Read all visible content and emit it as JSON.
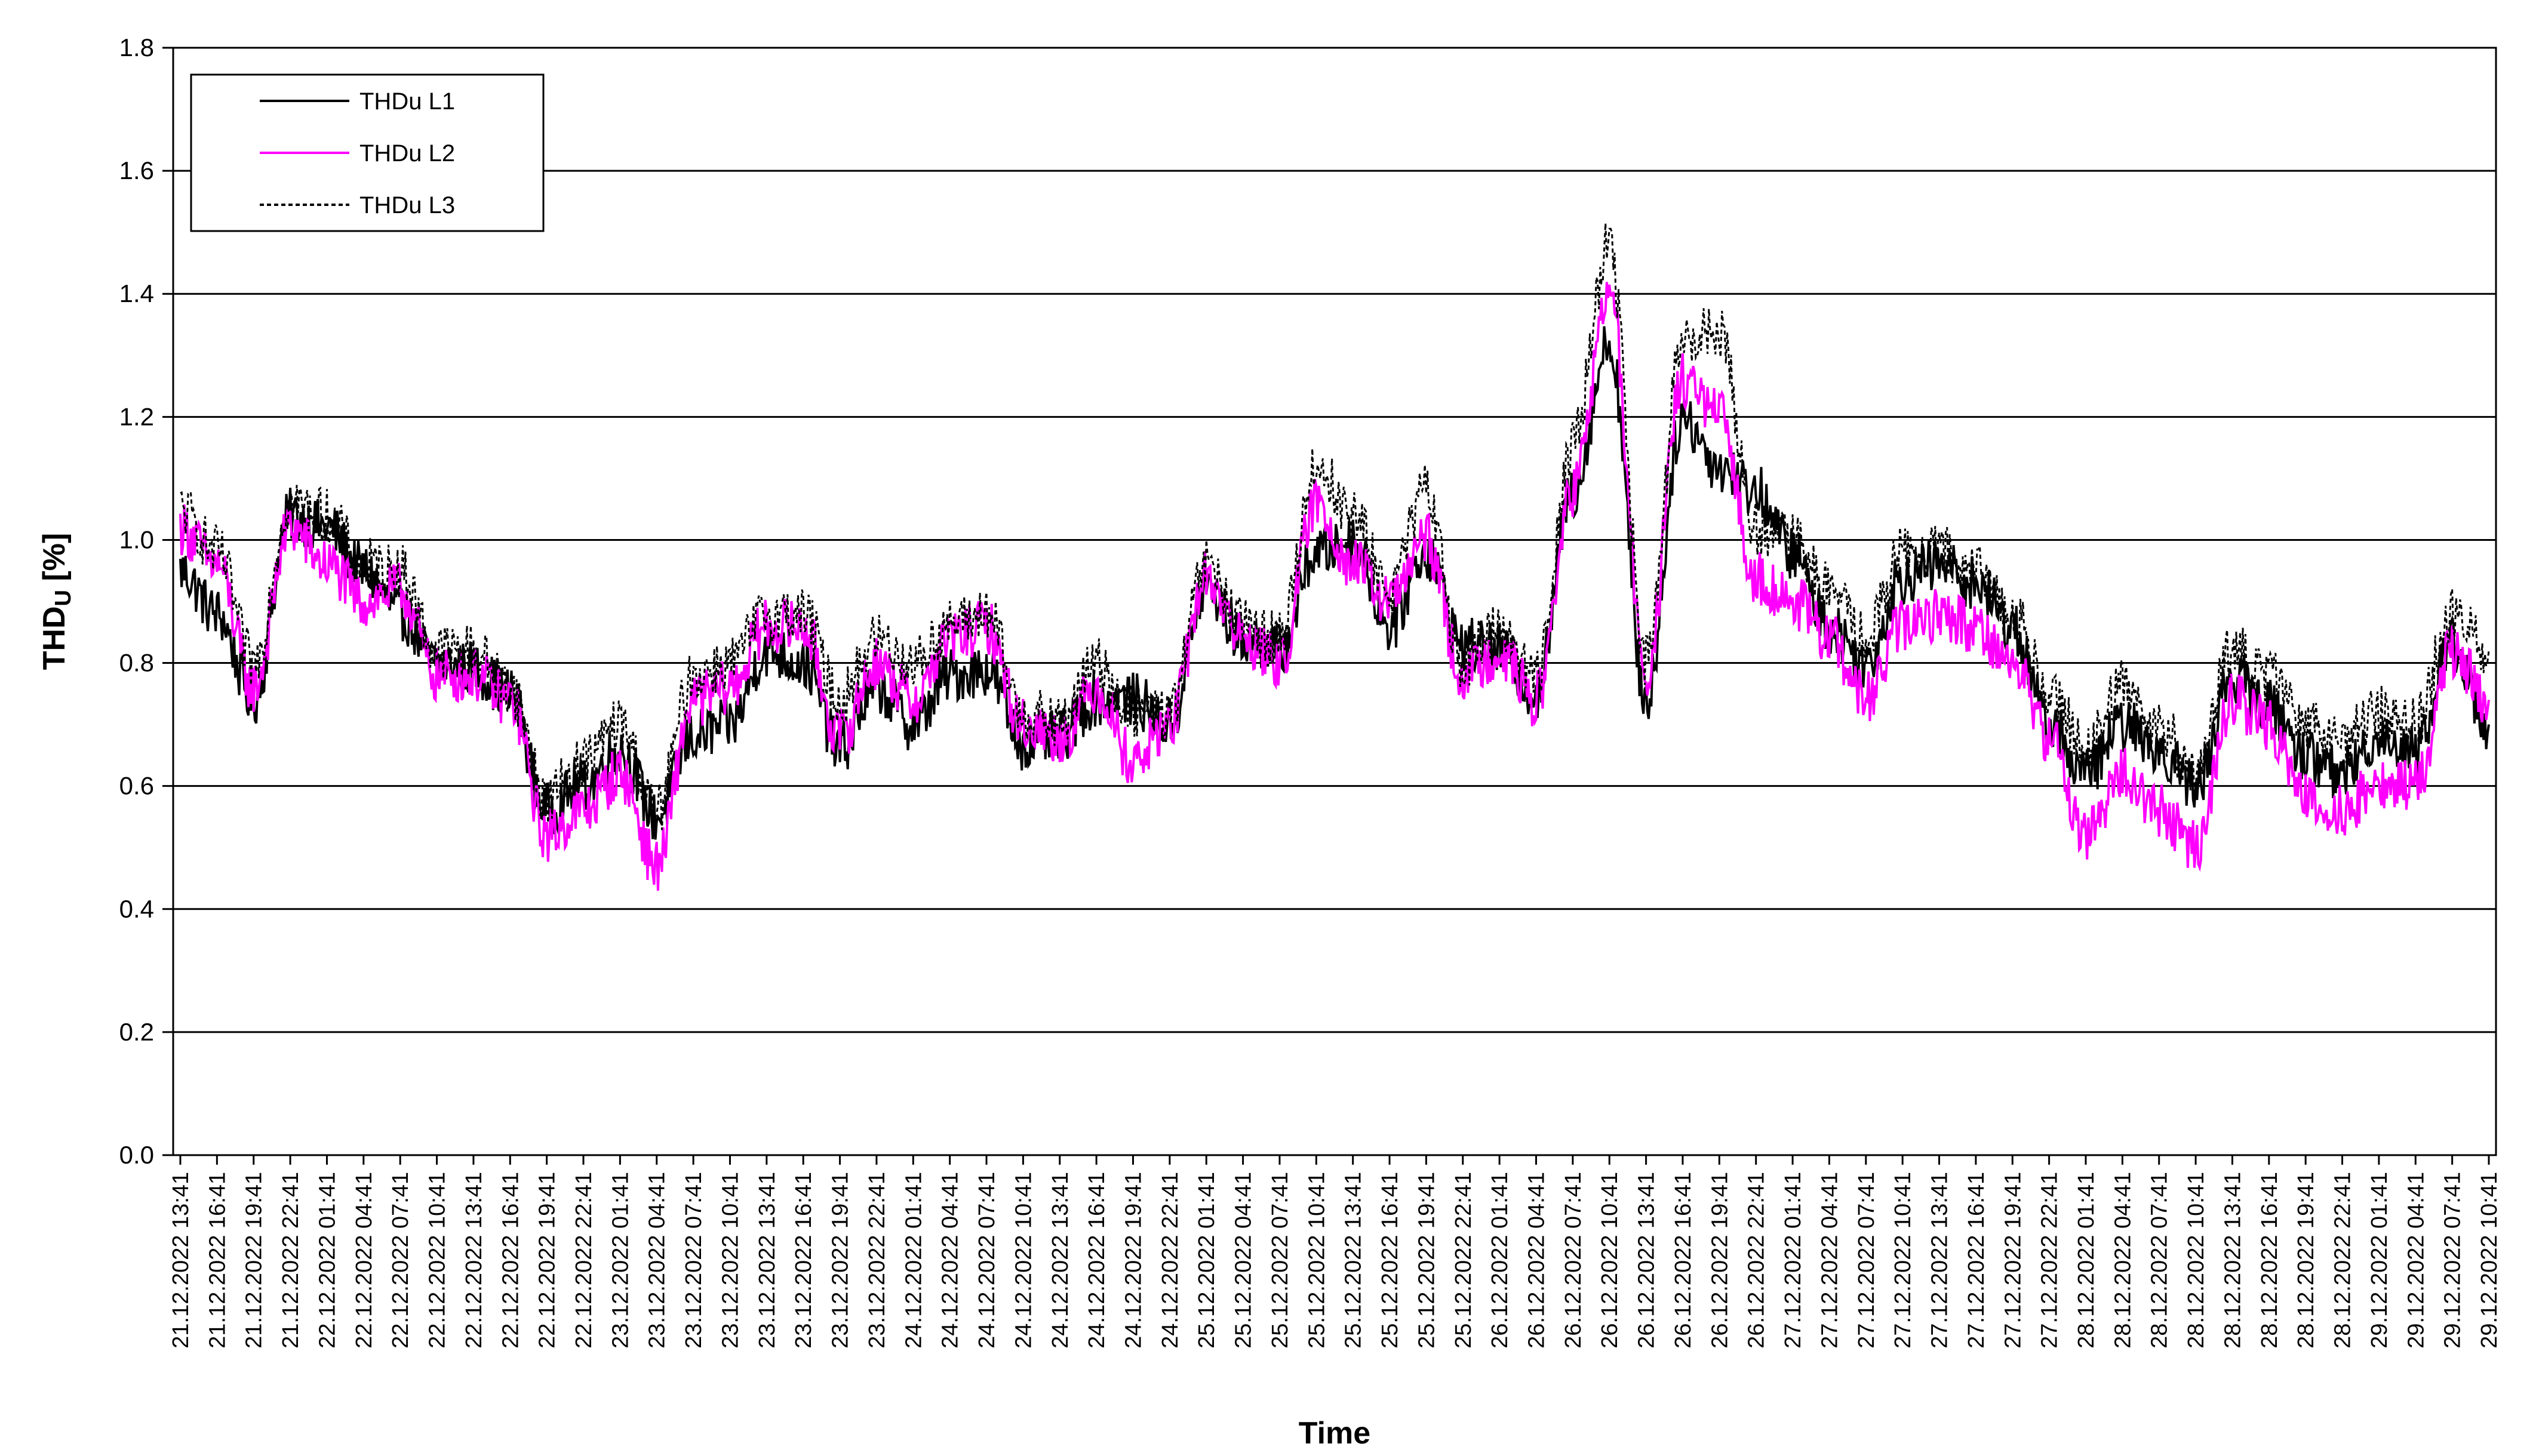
{
  "chart_data": {
    "type": "line",
    "title": "",
    "xlabel": "Time",
    "ylabel_main": "THD",
    "ylabel_sub": "U",
    "ylabel_unit": " [%]",
    "ylim": [
      0,
      1.8
    ],
    "yticks": [
      "0.0",
      "0.2",
      "0.4",
      "0.6",
      "0.8",
      "1.0",
      "1.2",
      "1.4",
      "1.6",
      "1.8"
    ],
    "grid": "horizontal",
    "legend_position": "top-left",
    "x_start": "21.12.2022 13:41",
    "x_end": "29.12.2022 12:41",
    "x_step_hours": 3,
    "x": [
      "21.12.2022 13:41",
      "21.12.2022 16:41",
      "21.12.2022 19:41",
      "21.12.2022 22:41",
      "22.12.2022 01:41",
      "22.12.2022 04:41",
      "22.12.2022 07:41",
      "22.12.2022 10:41",
      "22.12.2022 13:41",
      "22.12.2022 16:41",
      "22.12.2022 19:41",
      "22.12.2022 22:41",
      "23.12.2022 01:41",
      "23.12.2022 04:41",
      "23.12.2022 07:41",
      "23.12.2022 10:41",
      "23.12.2022 13:41",
      "23.12.2022 16:41",
      "23.12.2022 19:41",
      "23.12.2022 22:41",
      "24.12.2022 01:41",
      "24.12.2022 04:41",
      "24.12.2022 07:41",
      "24.12.2022 10:41",
      "24.12.2022 13:41",
      "24.12.2022 16:41",
      "24.12.2022 19:41",
      "24.12.2022 22:41",
      "25.12.2022 01:41",
      "25.12.2022 04:41",
      "25.12.2022 07:41",
      "25.12.2022 10:41",
      "25.12.2022 13:41",
      "25.12.2022 16:41",
      "25.12.2022 19:41",
      "25.12.2022 22:41",
      "26.12.2022 01:41",
      "26.12.2022 04:41",
      "26.12.2022 07:41",
      "26.12.2022 10:41",
      "26.12.2022 13:41",
      "26.12.2022 16:41",
      "26.12.2022 19:41",
      "26.12.2022 22:41",
      "27.12.2022 01:41",
      "27.12.2022 04:41",
      "27.12.2022 07:41",
      "27.12.2022 10:41",
      "27.12.2022 13:41",
      "27.12.2022 16:41",
      "27.12.2022 19:41",
      "27.12.2022 22:41",
      "28.12.2022 01:41",
      "28.12.2022 04:41",
      "28.12.2022 07:41",
      "28.12.2022 10:41",
      "28.12.2022 13:41",
      "28.12.2022 16:41",
      "28.12.2022 19:41",
      "28.12.2022 22:41",
      "29.12.2022 01:41",
      "29.12.2022 04:41",
      "29.12.2022 07:41",
      "29.12.2022 10:41"
    ],
    "series": [
      {
        "name": "THDu L1",
        "color": "#000000",
        "dash": "solid",
        "values": [
          0.95,
          0.88,
          0.74,
          1.04,
          1.02,
          0.95,
          0.88,
          0.8,
          0.79,
          0.75,
          0.56,
          0.6,
          0.66,
          0.55,
          0.68,
          0.7,
          0.82,
          0.8,
          0.66,
          0.76,
          0.7,
          0.78,
          0.79,
          0.67,
          0.68,
          0.74,
          0.74,
          0.7,
          0.92,
          0.84,
          0.82,
          0.98,
          1.0,
          0.86,
          0.98,
          0.83,
          0.82,
          0.75,
          1.08,
          1.32,
          0.74,
          1.2,
          1.12,
          1.08,
          0.98,
          0.86,
          0.8,
          0.94,
          0.96,
          0.93,
          0.86,
          0.7,
          0.62,
          0.7,
          0.66,
          0.6,
          0.78,
          0.73,
          0.65,
          0.62,
          0.68,
          0.66,
          0.83,
          0.7
        ]
      },
      {
        "name": "THDu L2",
        "color": "#ff00ff",
        "dash": "solid",
        "values": [
          1.02,
          0.96,
          0.76,
          1.02,
          0.96,
          0.9,
          0.92,
          0.78,
          0.78,
          0.74,
          0.52,
          0.56,
          0.62,
          0.47,
          0.74,
          0.76,
          0.86,
          0.86,
          0.68,
          0.8,
          0.74,
          0.84,
          0.86,
          0.7,
          0.68,
          0.76,
          0.64,
          0.7,
          0.94,
          0.84,
          0.8,
          1.06,
          0.96,
          0.9,
          1.0,
          0.78,
          0.82,
          0.74,
          1.08,
          1.4,
          0.78,
          1.26,
          1.2,
          0.94,
          0.9,
          0.84,
          0.74,
          0.86,
          0.88,
          0.86,
          0.8,
          0.68,
          0.52,
          0.62,
          0.56,
          0.5,
          0.74,
          0.7,
          0.58,
          0.56,
          0.6,
          0.6,
          0.82,
          0.74
        ]
      },
      {
        "name": "THDu L3",
        "color": "#000000",
        "dash": "dashed",
        "values": [
          1.05,
          0.98,
          0.8,
          1.06,
          1.04,
          0.96,
          0.95,
          0.82,
          0.82,
          0.76,
          0.58,
          0.64,
          0.7,
          0.56,
          0.78,
          0.8,
          0.88,
          0.88,
          0.74,
          0.84,
          0.8,
          0.86,
          0.88,
          0.72,
          0.7,
          0.8,
          0.72,
          0.72,
          0.96,
          0.86,
          0.84,
          1.12,
          1.04,
          0.92,
          1.08,
          0.8,
          0.86,
          0.78,
          1.16,
          1.48,
          0.8,
          1.32,
          1.34,
          1.02,
          1.0,
          0.92,
          0.84,
          0.98,
          0.98,
          0.95,
          0.88,
          0.76,
          0.66,
          0.76,
          0.7,
          0.62,
          0.82,
          0.78,
          0.7,
          0.68,
          0.72,
          0.7,
          0.88,
          0.82
        ]
      }
    ]
  }
}
